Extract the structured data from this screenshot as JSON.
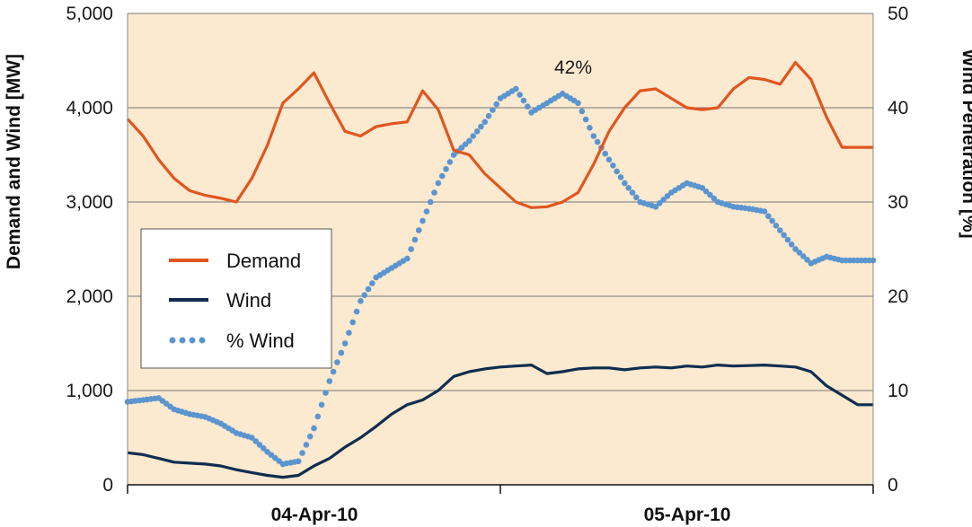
{
  "chart_data": {
    "type": "line",
    "ylabel": "Demand and Wind [MW]",
    "y2label": "Wind Penetration [%]",
    "ylim": [
      0,
      5000
    ],
    "y2lim": [
      0,
      50
    ],
    "yticks": [
      "0",
      "1,000",
      "2,000",
      "3,000",
      "4,000",
      "5,000"
    ],
    "y2ticks": [
      "0",
      "10",
      "20",
      "30",
      "40",
      "50"
    ],
    "x_categories": [
      "04-Apr-10",
      "05-Apr-10"
    ],
    "annotation": "42%",
    "legend": [
      "Demand",
      "Wind",
      "% Wind"
    ],
    "colors": {
      "demand": "#e0561f",
      "wind": "#0f2d4f",
      "pct_wind": "#5b95cf",
      "plot_background": "#fbe9d0",
      "grid": "#777777"
    },
    "grid": "horizontal",
    "legend_position": "left",
    "x_hours": [
      0,
      1,
      2,
      3,
      4,
      5,
      6,
      7,
      8,
      9,
      10,
      11,
      12,
      13,
      14,
      15,
      16,
      17,
      18,
      19,
      20,
      21,
      22,
      23,
      24,
      25,
      26,
      27,
      28,
      29,
      30,
      31,
      32,
      33,
      34,
      35,
      36,
      37,
      38,
      39,
      40,
      41,
      42,
      43,
      44,
      45,
      46,
      47,
      48
    ],
    "series": [
      {
        "name": "Demand",
        "axis": "left",
        "values": [
          3880,
          3700,
          3450,
          3250,
          3120,
          3070,
          3040,
          3000,
          3250,
          3600,
          4050,
          4200,
          4370,
          4050,
          3750,
          3700,
          3800,
          3830,
          3850,
          4180,
          3980,
          3550,
          3500,
          3300,
          3150,
          3000,
          2940,
          2950,
          3000,
          3100,
          3400,
          3750,
          4000,
          4180,
          4200,
          4100,
          4000,
          3980,
          4000,
          4200,
          4320,
          4300,
          4250,
          4480,
          4300,
          3900,
          3580,
          3580,
          3580
        ]
      },
      {
        "name": "Wind",
        "axis": "left",
        "values": [
          340,
          320,
          280,
          240,
          230,
          220,
          200,
          160,
          130,
          100,
          80,
          100,
          200,
          280,
          400,
          500,
          620,
          750,
          850,
          900,
          1000,
          1150,
          1200,
          1230,
          1250,
          1260,
          1270,
          1180,
          1200,
          1230,
          1240,
          1240,
          1220,
          1240,
          1250,
          1240,
          1260,
          1250,
          1270,
          1260,
          1265,
          1270,
          1260,
          1250,
          1200,
          1050,
          950,
          850,
          850
        ]
      },
      {
        "name": "% Wind",
        "axis": "right",
        "values": [
          8.8,
          9.0,
          9.2,
          8.0,
          7.5,
          7.2,
          6.5,
          5.5,
          5.0,
          3.5,
          2.2,
          2.5,
          6.0,
          11.0,
          15.0,
          19.5,
          22.0,
          23.0,
          24.0,
          28.0,
          32.0,
          35.0,
          36.5,
          38.5,
          41.0,
          42.0,
          39.5,
          40.5,
          41.5,
          40.5,
          37.0,
          34.5,
          32.0,
          30.0,
          29.5,
          31.0,
          32.0,
          31.5,
          30.0,
          29.5,
          29.3,
          29.0,
          27.0,
          25.0,
          23.5,
          24.2,
          23.8,
          23.8,
          23.8
        ]
      }
    ]
  }
}
